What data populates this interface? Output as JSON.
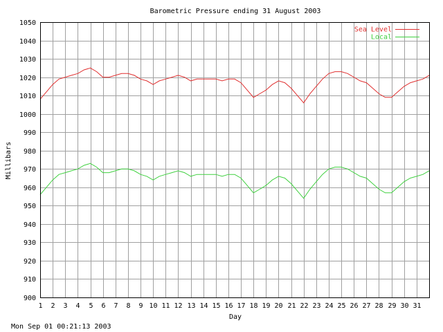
{
  "chart_data": {
    "type": "line",
    "title": "Barometric Pressure ending 31 August 2003",
    "xlabel": "Day",
    "ylabel": "Millibars",
    "timestamp": "Mon Sep 01 00:21:13 2003",
    "xlim": [
      1,
      32
    ],
    "ylim": [
      900,
      1050
    ],
    "x_ticks": [
      "1",
      "2",
      "3",
      "4",
      "5",
      "6",
      "7",
      "8",
      "9",
      "10",
      "11",
      "12",
      "13",
      "14",
      "15",
      "16",
      "17",
      "18",
      "19",
      "20",
      "21",
      "22",
      "23",
      "24",
      "25",
      "26",
      "27",
      "28",
      "29",
      "30",
      "31"
    ],
    "y_ticks": [
      "900",
      "910",
      "920",
      "930",
      "940",
      "950",
      "960",
      "970",
      "980",
      "990",
      "1000",
      "1010",
      "1020",
      "1030",
      "1040",
      "1050"
    ],
    "grid": true,
    "legend_position": "top-right",
    "series": [
      {
        "name": "Sea Level",
        "color": "#e03030",
        "x": [
          1,
          1.5,
          2,
          2.5,
          3,
          3.5,
          4,
          4.5,
          5,
          5.5,
          6,
          6.5,
          7,
          7.5,
          8,
          8.5,
          9,
          9.5,
          10,
          10.5,
          11,
          11.5,
          12,
          12.5,
          13,
          13.5,
          14,
          14.5,
          15,
          15.5,
          16,
          16.5,
          17,
          17.5,
          18,
          18.5,
          19,
          19.5,
          20,
          20.5,
          21,
          21.5,
          22,
          22.5,
          23,
          23.5,
          24,
          24.5,
          25,
          25.5,
          26,
          26.5,
          27,
          27.5,
          28,
          28.5,
          29,
          29.5,
          30,
          30.5,
          31,
          31.5,
          32
        ],
        "y": [
          1008,
          1012,
          1016,
          1019,
          1020,
          1021,
          1022,
          1024,
          1025,
          1023,
          1020,
          1020,
          1021,
          1022,
          1022,
          1021,
          1019,
          1018,
          1016,
          1018,
          1019,
          1020,
          1021,
          1020,
          1018,
          1019,
          1019,
          1019,
          1019,
          1018,
          1019,
          1019,
          1017,
          1013,
          1009,
          1011,
          1013,
          1016,
          1018,
          1017,
          1014,
          1010,
          1006,
          1011,
          1015,
          1019,
          1022,
          1023,
          1023,
          1022,
          1020,
          1018,
          1017,
          1014,
          1011,
          1009,
          1009,
          1012,
          1015,
          1017,
          1018,
          1019,
          1021
        ]
      },
      {
        "name": "Local",
        "color": "#40d040",
        "x": [
          1,
          1.5,
          2,
          2.5,
          3,
          3.5,
          4,
          4.5,
          5,
          5.5,
          6,
          6.5,
          7,
          7.5,
          8,
          8.5,
          9,
          9.5,
          10,
          10.5,
          11,
          11.5,
          12,
          12.5,
          13,
          13.5,
          14,
          14.5,
          15,
          15.5,
          16,
          16.5,
          17,
          17.5,
          18,
          18.5,
          19,
          19.5,
          20,
          20.5,
          21,
          21.5,
          22,
          22.5,
          23,
          23.5,
          24,
          24.5,
          25,
          25.5,
          26,
          26.5,
          27,
          27.5,
          28,
          28.5,
          29,
          29.5,
          30,
          30.5,
          31,
          31.5,
          32
        ],
        "y": [
          956,
          960,
          964,
          967,
          968,
          969,
          970,
          972,
          973,
          971,
          968,
          968,
          969,
          970,
          970,
          969,
          967,
          966,
          964,
          966,
          967,
          968,
          969,
          968,
          966,
          967,
          967,
          967,
          967,
          966,
          967,
          967,
          965,
          961,
          957,
          959,
          961,
          964,
          966,
          965,
          962,
          958,
          954,
          959,
          963,
          967,
          970,
          971,
          971,
          970,
          968,
          966,
          965,
          962,
          959,
          957,
          957,
          960,
          963,
          965,
          966,
          967,
          969
        ]
      }
    ]
  }
}
